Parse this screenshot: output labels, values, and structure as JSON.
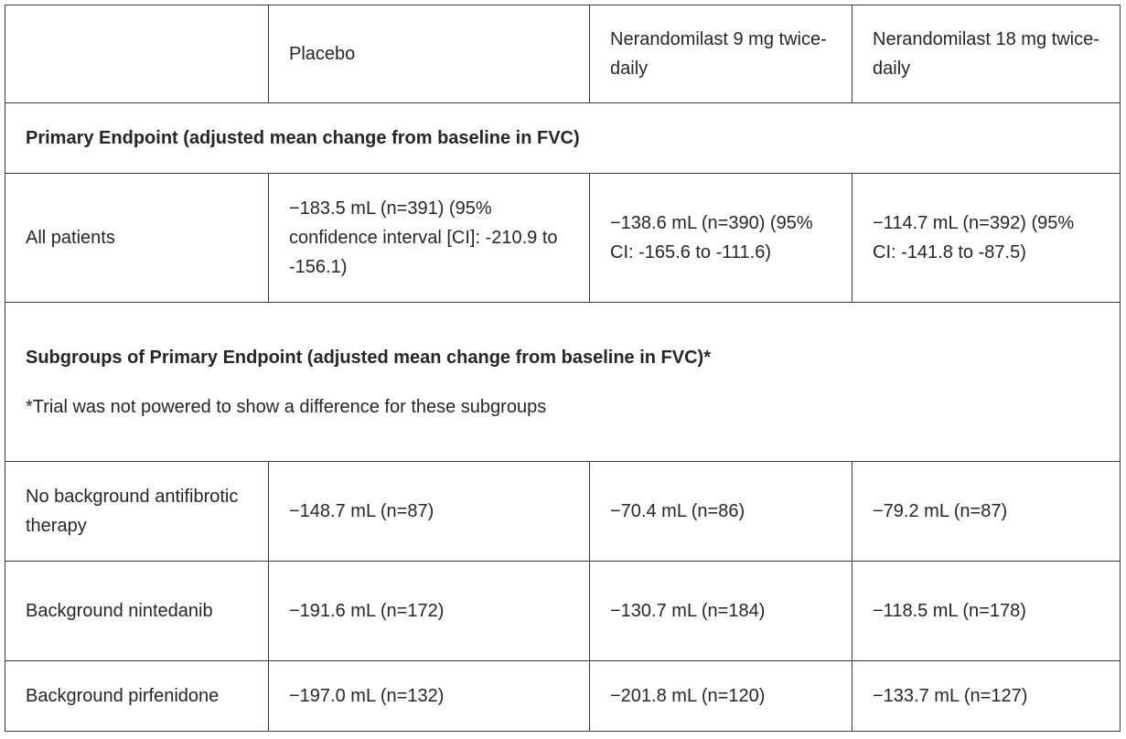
{
  "header": {
    "col1": "",
    "col2": "Placebo",
    "col3": "Nerandomilast 9 mg twice-daily",
    "col4": "Nerandomilast 18 mg twice-daily"
  },
  "primary_section": {
    "title": "Primary Endpoint (adjusted mean change from baseline in FVC)"
  },
  "all_patients": {
    "label": "All patients",
    "placebo": "−183.5 mL (n=391) (95% confidence interval [CI]: -210.9 to -156.1)",
    "dose_9mg": "−138.6 mL (n=390) (95% CI: -165.6 to -111.6)",
    "dose_18mg": "−114.7 mL (n=392) (95% CI: -141.8 to -87.5)"
  },
  "subgroup_section": {
    "title": "Subgroups of Primary Endpoint (adjusted mean change from baseline in FVC)*",
    "footnote": "*Trial was not powered to show a difference for these subgroups"
  },
  "subgroups": [
    {
      "label": "No background antifibrotic therapy",
      "placebo": "−148.7 mL (n=87)",
      "dose_9mg": "−70.4 mL (n=86)",
      "dose_18mg": "−79.2 mL (n=87)"
    },
    {
      "label": "Background nintedanib",
      "placebo": "−191.6 mL (n=172)",
      "dose_9mg": "−130.7 mL (n=184)",
      "dose_18mg": "−118.5 mL (n=178)"
    },
    {
      "label": "Background pirfenidone",
      "placebo": "−197.0 mL (n=132)",
      "dose_9mg": "−201.8 mL (n=120)",
      "dose_18mg": "−133.7 mL (n=127)"
    }
  ]
}
